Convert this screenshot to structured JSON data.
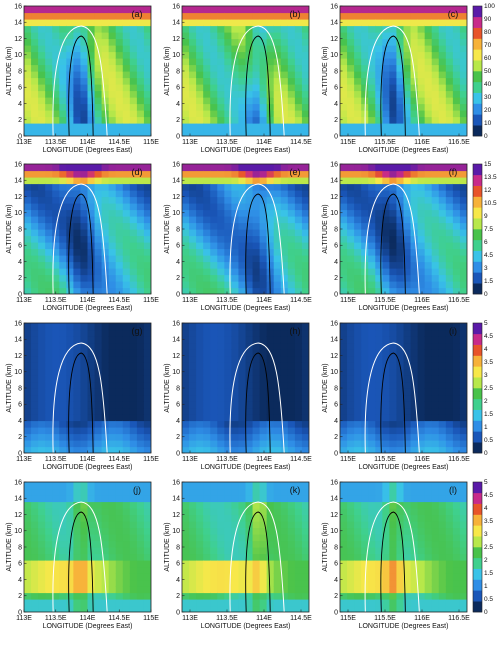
{
  "chart_data": {
    "type": "heatmap",
    "rows": [
      {
        "colorbar": {
          "ticks": [
            "0",
            "10",
            "20",
            "30",
            "40",
            "50",
            "60",
            "70",
            "80",
            "90",
            "100"
          ],
          "stops": [
            "#0b2a5c",
            "#1a56b8",
            "#2f8ee6",
            "#39c3e8",
            "#3fd08e",
            "#49c24a",
            "#b8e84a",
            "#f7e84a",
            "#f7b23a",
            "#e8542a",
            "#c82a8a",
            "#5a1aa8"
          ]
        },
        "panels": [
          {
            "label": "(a)",
            "xticks": [
              "113E",
              "113.5E",
              "114E",
              "114.5E",
              "115E"
            ],
            "xlabel": "LONGITUDE (Degrees East)",
            "ylabel": "ALTITUDE (km)"
          },
          {
            "label": "(b)",
            "xticks": [
              "113E",
              "113.5E",
              "114E",
              "114.5E"
            ],
            "xlabel": "LONGITUDE (Degrees East)",
            "ylabel": "ALTITUDE (km)"
          },
          {
            "label": "(c)",
            "xticks": [
              "115E",
              "115.5E",
              "116E",
              "116.5E"
            ],
            "xlabel": "LONGITUDE (Degrees East)",
            "ylabel": "ALTITUDE (km)"
          }
        ]
      },
      {
        "colorbar": {
          "ticks": [
            "0",
            "1.5",
            "3",
            "4.5",
            "6",
            "7.5",
            "9",
            "10.5",
            "12",
            "13.5",
            "15"
          ],
          "stops": [
            "#0b2a5c",
            "#1a56b8",
            "#2f8ee6",
            "#39c3e8",
            "#3fd08e",
            "#49c24a",
            "#b8e84a",
            "#f7e84a",
            "#f7b23a",
            "#e8542a",
            "#c82a8a",
            "#5a1aa8"
          ]
        },
        "panels": [
          {
            "label": "(d)",
            "xticks": [
              "113E",
              "113.5E",
              "114E",
              "114.5E",
              "115E"
            ],
            "xlabel": "LONGITUDE (Degrees East)",
            "ylabel": "ALTITUDE (km)"
          },
          {
            "label": "(e)",
            "xticks": [
              "113E",
              "113.5E",
              "114E",
              "114.5E"
            ],
            "xlabel": "LONGITUDE (Degrees East)",
            "ylabel": "ALTITUDE (km)"
          },
          {
            "label": "(f)",
            "xticks": [
              "115E",
              "115.5E",
              "116E",
              "116.5E"
            ],
            "xlabel": "LONGITUDE (Degrees East)",
            "ylabel": "ALTITUDE (km)"
          }
        ]
      },
      {
        "colorbar": {
          "ticks": [
            "0",
            "0.5",
            "1",
            "1.5",
            "2",
            "2.5",
            "3",
            "3.5",
            "4",
            "4.5",
            "5"
          ],
          "stops": [
            "#0b2a5c",
            "#1a56b8",
            "#2f8ee6",
            "#39c3e8",
            "#3fd08e",
            "#49c24a",
            "#b8e84a",
            "#f7e84a",
            "#f7b23a",
            "#e8542a",
            "#c82a8a",
            "#5a1aa8"
          ]
        },
        "panels": [
          {
            "label": "(g)",
            "xticks": [
              "113E",
              "113.5E",
              "114E",
              "114.5E",
              "115E"
            ],
            "xlabel": "LONGITUDE (Degrees East)",
            "ylabel": "ALTITUDE (km)"
          },
          {
            "label": "(h)",
            "xticks": [
              "113E",
              "113.5E",
              "114E",
              "114.5E"
            ],
            "xlabel": "LONGITUDE (Degrees East)",
            "ylabel": "ALTITUDE (km)"
          },
          {
            "label": "(i)",
            "xticks": [
              "115E",
              "115.5E",
              "116E",
              "116.5E"
            ],
            "xlabel": "LONGITUDE (Degrees East)",
            "ylabel": "ALTITUDE (km)"
          }
        ]
      },
      {
        "colorbar": {
          "ticks": [
            "0",
            "0.5",
            "1",
            "1.5",
            "2",
            "2.5",
            "3",
            "3.5",
            "4",
            "4.5",
            "5"
          ],
          "stops": [
            "#0b2a5c",
            "#1a56b8",
            "#2f8ee6",
            "#39c3e8",
            "#3fd08e",
            "#49c24a",
            "#b8e84a",
            "#f7e84a",
            "#f7b23a",
            "#e8542a",
            "#c82a8a",
            "#5a1aa8"
          ]
        },
        "panels": [
          {
            "label": "(j)",
            "xticks": [
              "113E",
              "113.5E",
              "114E",
              "114.5E",
              "115E"
            ],
            "xlabel": "LONGITUDE (Degrees East)",
            "ylabel": "ALTITUDE (km)"
          },
          {
            "label": "(k)",
            "xticks": [
              "113E",
              "113.5E",
              "114E",
              "114.5E"
            ],
            "xlabel": "LONGITUDE (Degrees East)",
            "ylabel": "ALTITUDE (km)"
          },
          {
            "label": "(l)",
            "xticks": [
              "115E",
              "115.5E",
              "116E",
              "116.5E"
            ],
            "xlabel": "LONGITUDE (Degrees East)",
            "ylabel": "ALTITUDE (km)"
          }
        ]
      }
    ],
    "yticks": [
      "0",
      "2",
      "4",
      "6",
      "8",
      "10",
      "12",
      "14",
      "16"
    ],
    "ylim": [
      0,
      16
    ]
  }
}
